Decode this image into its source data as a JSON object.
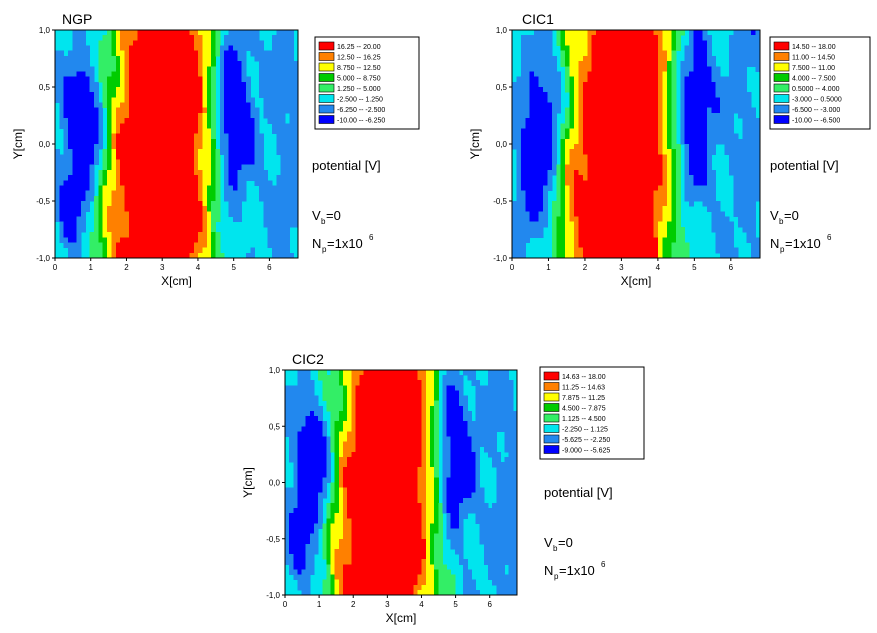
{
  "chart_data": [
    {
      "type": "heatmap",
      "title": "NGP",
      "xlabel": "X[cm]",
      "ylabel": "Y[cm]",
      "xlim": [
        0,
        6.8
      ],
      "ylim": [
        -1.0,
        1.0
      ],
      "xticks": [
        "0",
        "1",
        "2",
        "3",
        "4",
        "5",
        "6"
      ],
      "yticks": [
        "1,0",
        "0,5",
        "0,0",
        "-0,5",
        "-1,0"
      ],
      "legend_placement": "right",
      "legend_title": "potential [V]",
      "legend": [
        {
          "label": "16.25 -- 20.00",
          "color": "#ff0000"
        },
        {
          "label": "12.50 -- 16.25",
          "color": "#ff8000"
        },
        {
          "label": "8.750 -- 12.50",
          "color": "#ffff00"
        },
        {
          "label": "5.000 -- 8.750",
          "color": "#00cc00"
        },
        {
          "label": "1.250 -- 5.000",
          "color": "#33ee66"
        },
        {
          "label": "-2.500 -- 1.250",
          "color": "#00e5ee"
        },
        {
          "label": "-6.250 -- -2.500",
          "color": "#2288ee"
        },
        {
          "label": "-10.00 -- -6.250",
          "color": "#0000ff"
        }
      ],
      "annotations": {
        "vb": "V",
        "vb_sub": "b",
        "vb_val": "=0",
        "np": "N",
        "np_sub": "p",
        "np_val": "=1x10",
        "np_sup": "6"
      }
    },
    {
      "type": "heatmap",
      "title": "CIC1",
      "xlabel": "X[cm]",
      "ylabel": "Y[cm]",
      "xlim": [
        0,
        6.8
      ],
      "ylim": [
        -1.0,
        1.0
      ],
      "xticks": [
        "0",
        "1",
        "2",
        "3",
        "4",
        "5",
        "6"
      ],
      "yticks": [
        "1,0",
        "0,5",
        "0,0",
        "-0,5",
        "-1,0"
      ],
      "legend_placement": "right",
      "legend_title": "potential [V]",
      "legend": [
        {
          "label": "14.50 -- 18.00",
          "color": "#ff0000"
        },
        {
          "label": "11.00 -- 14.50",
          "color": "#ff8000"
        },
        {
          "label": "7.500 -- 11.00",
          "color": "#ffff00"
        },
        {
          "label": "4.000 -- 7.500",
          "color": "#00cc00"
        },
        {
          "label": "0.5000 -- 4.000",
          "color": "#33ee66"
        },
        {
          "label": "-3.000 -- 0.5000",
          "color": "#00e5ee"
        },
        {
          "label": "-6.500 -- -3.000",
          "color": "#2288ee"
        },
        {
          "label": "-10.00 -- -6.500",
          "color": "#0000ff"
        }
      ],
      "annotations": {
        "vb": "V",
        "vb_sub": "b",
        "vb_val": "=0",
        "np": "N",
        "np_sub": "p",
        "np_val": "=1x10",
        "np_sup": "6"
      }
    },
    {
      "type": "heatmap",
      "title": "CIC2",
      "xlabel": "X[cm]",
      "ylabel": "Y[cm]",
      "xlim": [
        0,
        6.8
      ],
      "ylim": [
        -1.0,
        1.0
      ],
      "xticks": [
        "0",
        "1",
        "2",
        "3",
        "4",
        "5",
        "6"
      ],
      "yticks": [
        "1,0",
        "0,5",
        "0,0",
        "-0,5",
        "-1,0"
      ],
      "legend_placement": "right",
      "legend_title": "potential [V]",
      "legend": [
        {
          "label": "14.63 -- 18.00",
          "color": "#ff0000"
        },
        {
          "label": "11.25 -- 14.63",
          "color": "#ff8000"
        },
        {
          "label": "7.875 -- 11.25",
          "color": "#ffff00"
        },
        {
          "label": "4.500 -- 7.875",
          "color": "#00cc00"
        },
        {
          "label": "1.125 -- 4.500",
          "color": "#33ee66"
        },
        {
          "label": "-2.250 -- 1.125",
          "color": "#00e5ee"
        },
        {
          "label": "-5.625 -- -2.250",
          "color": "#2288ee"
        },
        {
          "label": "-9.000 -- -5.625",
          "color": "#0000ff"
        }
      ],
      "annotations": {
        "vb": "V",
        "vb_sub": "b",
        "vb_val": "=0",
        "np": "N",
        "np_sub": "p",
        "np_val": "=1x10",
        "np_sup": "6"
      }
    }
  ]
}
